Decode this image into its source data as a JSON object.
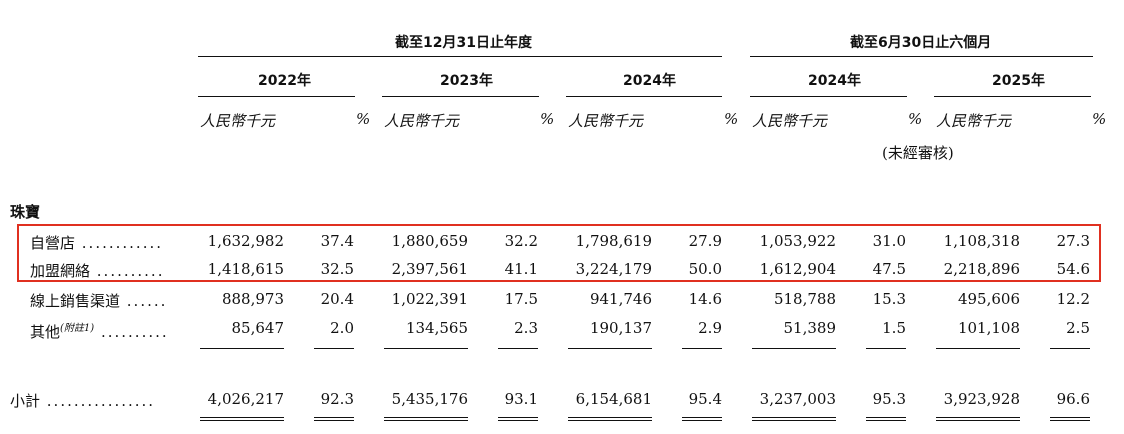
{
  "header": {
    "group1": "截至12月31日止年度",
    "group2": "截至6月30日止六個月",
    "years": [
      "2022年",
      "2023年",
      "2024年",
      "2024年",
      "2025年"
    ],
    "unit_rmb": "人民幣千元",
    "unit_pct": "%",
    "unaudited": "(未經審核)"
  },
  "section_title": "珠寶",
  "rows": [
    {
      "label": "自營店",
      "dots": "............",
      "values": [
        "1,632,982",
        "37.4",
        "1,880,659",
        "32.2",
        "1,798,619",
        "27.9",
        "1,053,922",
        "31.0",
        "1,108,318",
        "27.3"
      ]
    },
    {
      "label": "加盟網絡",
      "dots": "..........",
      "values": [
        "1,418,615",
        "32.5",
        "2,397,561",
        "41.1",
        "3,224,179",
        "50.0",
        "1,612,904",
        "47.5",
        "2,218,896",
        "54.6"
      ]
    },
    {
      "label": "線上銷售渠道",
      "dots": "......",
      "values": [
        "888,973",
        "20.4",
        "1,022,391",
        "17.5",
        "941,746",
        "14.6",
        "518,788",
        "15.3",
        "495,606",
        "12.2"
      ]
    },
    {
      "label": "其他",
      "note": "(附註1)",
      "dots": "..........",
      "values": [
        "85,647",
        "2.0",
        "134,565",
        "2.3",
        "190,137",
        "2.9",
        "51,389",
        "1.5",
        "101,108",
        "2.5"
      ]
    }
  ],
  "subtotal": {
    "label": "小計",
    "dots": "................",
    "values": [
      "4,026,217",
      "92.3",
      "5,435,176",
      "93.1",
      "6,154,681",
      "95.4",
      "3,237,003",
      "95.3",
      "3,923,928",
      "96.6"
    ]
  },
  "highlight_color": "#e03020"
}
